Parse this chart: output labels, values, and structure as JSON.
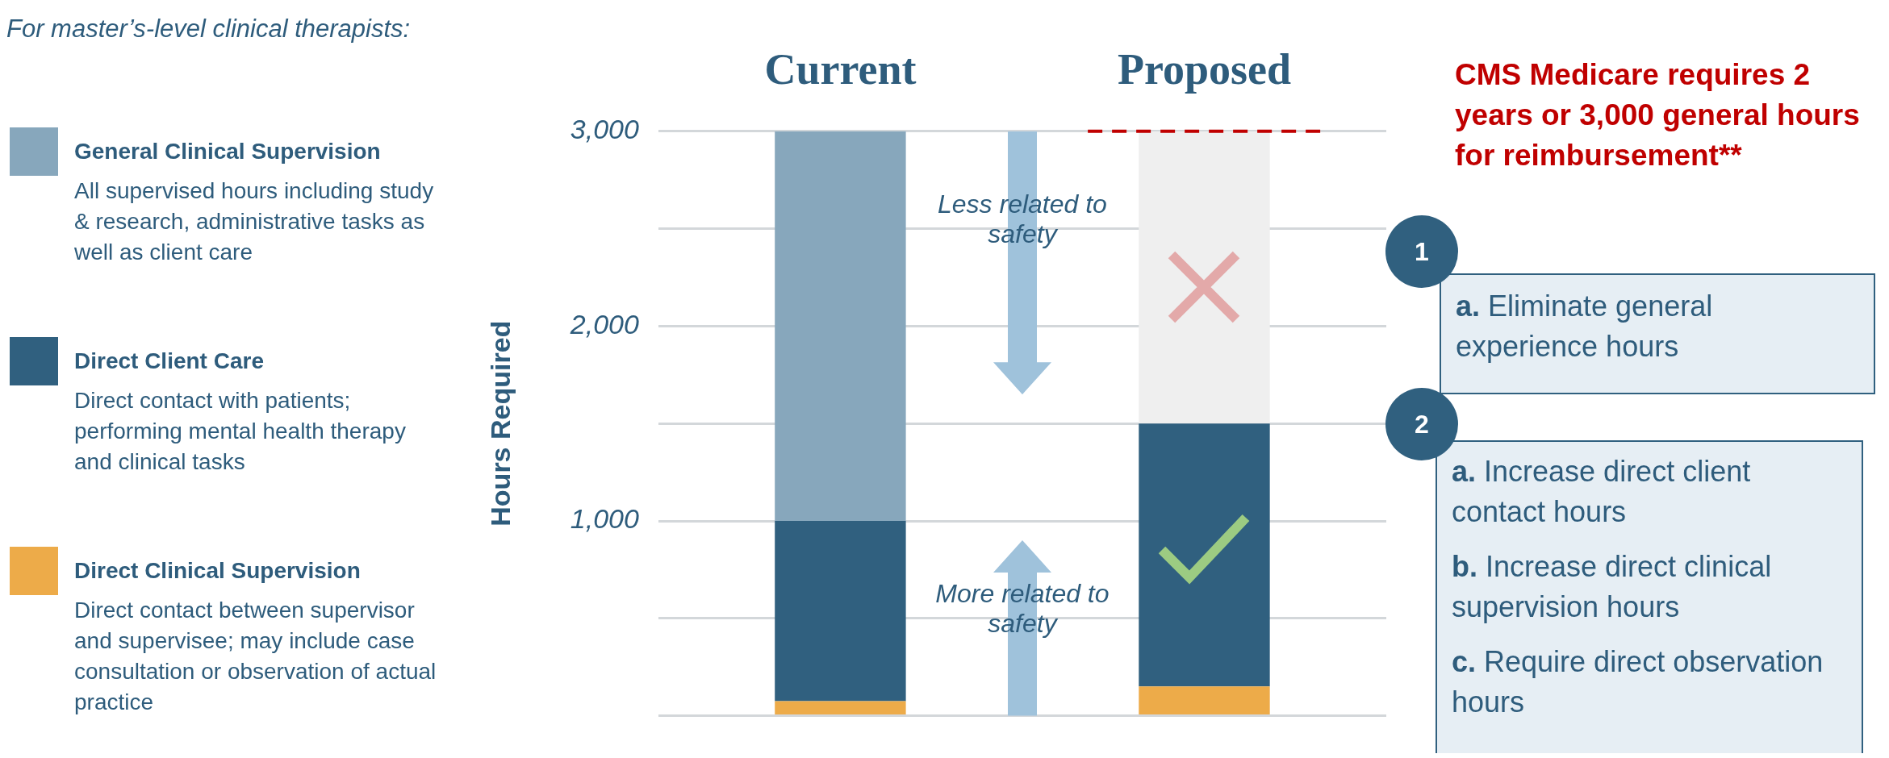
{
  "chart_data": {
    "type": "bar",
    "subtitle": "For master’s-level clinical therapists:",
    "ylabel": "Hours Required",
    "categories": [
      "Current",
      "Proposed"
    ],
    "stacked": true,
    "legend": "left",
    "series": [
      {
        "name": "Direct Clinical Supervision",
        "color": "#edab49",
        "values": [
          75,
          150
        ]
      },
      {
        "name": "Direct Client Care",
        "color": "#30607f",
        "values": [
          925,
          1350
        ]
      },
      {
        "name": "General Clinical Supervision",
        "color": "#87a7bc",
        "colors": [
          "#87a7bc",
          "#efefef"
        ],
        "values": [
          2000,
          1500
        ]
      }
    ],
    "ylim": [
      0,
      3000
    ],
    "yticks": [
      {
        "value": 0,
        "label": null
      },
      {
        "value": 500,
        "label": null
      },
      {
        "value": 1000,
        "label": "1,000"
      },
      {
        "value": 1500,
        "label": null
      },
      {
        "value": 2000,
        "label": "2,000"
      },
      {
        "value": 2500,
        "label": null
      },
      {
        "value": 3000,
        "label": "3,000"
      }
    ],
    "grid": "y",
    "ref_lines": [
      {
        "axis": "y",
        "value": 3000,
        "label": "CMS Medicare requires 2 years or 3,000 general hours for reimbursement**",
        "color": "#c00000",
        "line_style": "dashed"
      }
    ],
    "annotations": [
      "All supervised hours including study & research, administrative tasks as well as client care",
      "Direct contact with patients; performing mental health therapy and clinical tasks",
      "Direct contact between supervisor and supervisee; may include case consultation or observation of actual practice",
      "Less related to safety",
      "More related to safety",
      "1",
      "a. Eliminate general experience hours",
      "2",
      "a. Increase direct client contact hours",
      "b. Increase direct clinical supervision hours",
      "c. Require direct observation hours"
    ]
  }
}
